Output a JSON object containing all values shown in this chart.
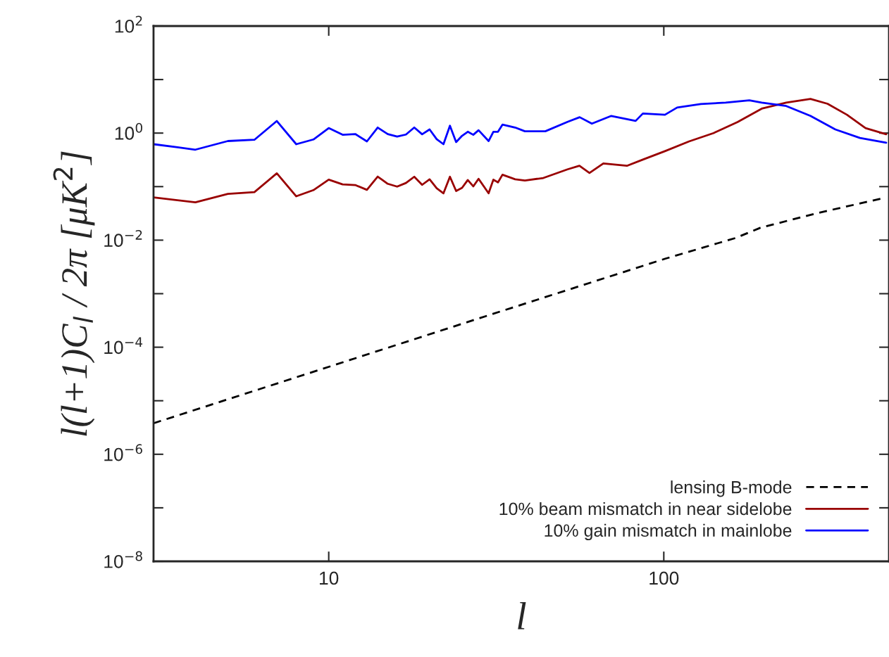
{
  "chart_data": {
    "type": "line",
    "xlabel": "l",
    "ylabel": "l(l+1)C$_{l}$ / 2π [μK$^{2}$]",
    "log": "xy",
    "xlim": [
      3,
      470
    ],
    "xticks": [
      10,
      100
    ],
    "ylim": [
      1e-08,
      100
    ],
    "yticks": [
      {
        "value": 1e-08,
        "label": "10$^{−8}$"
      },
      {
        "value": 1e-07,
        "label": null
      },
      {
        "value": 1e-06,
        "label": "10$^{−6}$"
      },
      {
        "value": 1e-05,
        "label": null
      },
      {
        "value": 0.0001,
        "label": "10$^{−4}$"
      },
      {
        "value": 0.001,
        "label": null
      },
      {
        "value": 0.01,
        "label": "10$^{−2}$"
      },
      {
        "value": 0.1,
        "label": null
      },
      {
        "value": 1,
        "label": "10$^{0}$"
      },
      {
        "value": 10,
        "label": null
      },
      {
        "value": 100,
        "label": "10$^{2}$"
      }
    ],
    "grid": false,
    "legend": "bottom right",
    "series": [
      {
        "name": "lensing B-mode",
        "color": "#000000",
        "line_style": "dashed",
        "x": [
          3,
          10,
          27,
          101,
          164,
          194,
          287,
          453
        ],
        "values": [
          3.8e-06,
          4.3e-05,
          0.00032,
          0.0045,
          0.011,
          0.017,
          0.032,
          0.061
        ]
      },
      {
        "name": "10% beam mismatch in near sidelobe",
        "color": "#990000",
        "line_style": "solid",
        "x": [
          3,
          4,
          5,
          6,
          7,
          8,
          9,
          10,
          11,
          12,
          13,
          14,
          15,
          16,
          17,
          18,
          19,
          20,
          21,
          22,
          23,
          24,
          25,
          26,
          27,
          28,
          30,
          31,
          32,
          33,
          36,
          38.5,
          43.7,
          51.6,
          56,
          60,
          66,
          77.6,
          86.6,
          100.8,
          119,
          140.7,
          166,
          196,
          232,
          274,
          308,
          352,
          400,
          461
        ],
        "values": [
          0.063,
          0.051,
          0.073,
          0.079,
          0.177,
          0.066,
          0.086,
          0.135,
          0.11,
          0.107,
          0.087,
          0.154,
          0.113,
          0.1,
          0.117,
          0.153,
          0.108,
          0.137,
          0.093,
          0.075,
          0.153,
          0.083,
          0.095,
          0.133,
          0.101,
          0.14,
          0.075,
          0.135,
          0.12,
          0.167,
          0.137,
          0.13,
          0.145,
          0.21,
          0.245,
          0.18,
          0.27,
          0.245,
          0.32,
          0.46,
          0.7,
          1.0,
          1.61,
          2.86,
          3.7,
          4.35,
          3.53,
          2.2,
          1.24,
          0.95
        ]
      },
      {
        "name": "10% gain mismatch in mainlobe",
        "color": "#0000ff",
        "line_style": "solid",
        "x": [
          3,
          4,
          5,
          6,
          7,
          8,
          9,
          10,
          11,
          12,
          13,
          14,
          15,
          16,
          17,
          18,
          19,
          20,
          21,
          22,
          23,
          24,
          25,
          26,
          27,
          28,
          30,
          31,
          32,
          33,
          36,
          38.5,
          44.3,
          51.6,
          56.1,
          61,
          69.7,
          82.4,
          86.6,
          100.8,
          109.6,
          129,
          153,
          180,
          196,
          232,
          274,
          325,
          385,
          461
        ],
        "values": [
          0.62,
          0.49,
          0.71,
          0.75,
          1.68,
          0.62,
          0.76,
          1.24,
          0.93,
          0.96,
          0.7,
          1.27,
          0.96,
          0.86,
          0.94,
          1.27,
          0.95,
          1.17,
          0.77,
          0.62,
          1.37,
          0.68,
          0.89,
          1.06,
          0.93,
          1.13,
          0.71,
          1.06,
          1.06,
          1.44,
          1.27,
          1.08,
          1.08,
          1.62,
          1.98,
          1.5,
          2.09,
          1.69,
          2.32,
          2.2,
          3.0,
          3.5,
          3.7,
          4.1,
          3.7,
          3.2,
          2.09,
          1.17,
          0.81,
          0.66
        ]
      }
    ]
  }
}
